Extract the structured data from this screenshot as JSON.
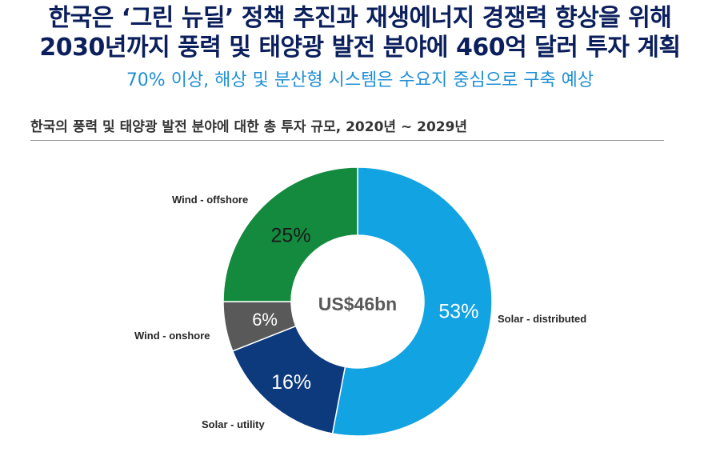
{
  "header": {
    "title_line1": "한국은 ‘그린 뉴딜’ 정책 추진과 재생에너지 경쟁력 향상을 위해",
    "title_line2": "2030년까지 풍력 및 태양광 발전 분야에 460억 달러 투자 계획",
    "subtitle": "70% 이상, 해상 및 분산형 시스템은 수요지 중심으로 구축 예상"
  },
  "chart_data": {
    "type": "pie",
    "title": "한국의  풍력 및 태양광 발전 분야에 대한 총 투자 규모, 2020년 ~ 2029년",
    "center_label": "US$46bn",
    "slices": [
      {
        "name": "Solar - distributed",
        "value": 53,
        "label": "53%",
        "color": "#12a3e3"
      },
      {
        "name": "Solar - utility",
        "value": 16,
        "label": "16%",
        "color": "#0d3a7d"
      },
      {
        "name": "Wind - onshore",
        "value": 6,
        "label": "6%",
        "color": "#595959"
      },
      {
        "name": "Wind - offshore",
        "value": 25,
        "label": "25%",
        "color": "#138a3d"
      }
    ]
  }
}
